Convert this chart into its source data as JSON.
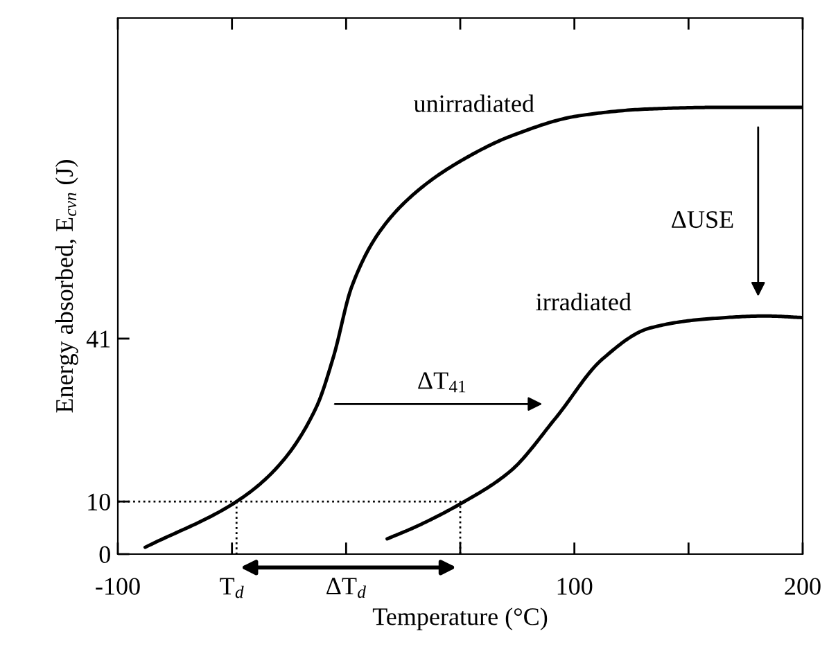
{
  "chart_data": {
    "type": "line",
    "xlabel": "Temperature (°C)",
    "ylabel": "Energy absorbed, E$_{cvn}$ (J)",
    "xlim": [
      -100,
      200
    ],
    "ylim": [
      0,
      102
    ],
    "xticks": [
      -100,
      {
        "value": -50,
        "label": "T$_{d}$"
      },
      {
        "value": 0,
        "label": "ΔT$_{d}$"
      },
      {
        "value": 50,
        "label": null
      },
      100,
      {
        "value": 150,
        "label": null
      },
      200
    ],
    "yticks": [
      0,
      10,
      41
    ],
    "grid": false,
    "legend": false,
    "marker": "none",
    "series": [
      {
        "color": "#000000",
        "line_style": "solid",
        "x": [
          -88,
          -48,
          -30,
          -13,
          -5.5,
          2.4,
          14.6,
          31,
          51,
          72,
          102,
          133,
          163,
          200
        ],
        "values": [
          1.3,
          10,
          16.6,
          28,
          37.6,
          50.8,
          61.3,
          69,
          75,
          79.5,
          83.4,
          84.7,
          85,
          85
        ]
      },
      {
        "color": "#000000",
        "line_style": "solid",
        "x": [
          18,
          31,
          50.6,
          72,
          92,
          112,
          133,
          157,
          184,
          200
        ],
        "values": [
          2.9,
          5.3,
          9.7,
          15.8,
          26,
          37,
          43,
          44.7,
          45.3,
          45
        ]
      },
      {
        "color": "#000000",
        "line_style": "dotted",
        "x": [
          -100,
          50,
          50
        ],
        "values": [
          10,
          10,
          0
        ]
      },
      {
        "color": "#000000",
        "line_style": "dotted",
        "x": [
          -48,
          -48
        ],
        "values": [
          10,
          0
        ]
      }
    ],
    "annotations": [
      "unirradiated",
      "irradiated",
      "ΔUSE",
      "ΔT$_{41}$"
    ]
  }
}
